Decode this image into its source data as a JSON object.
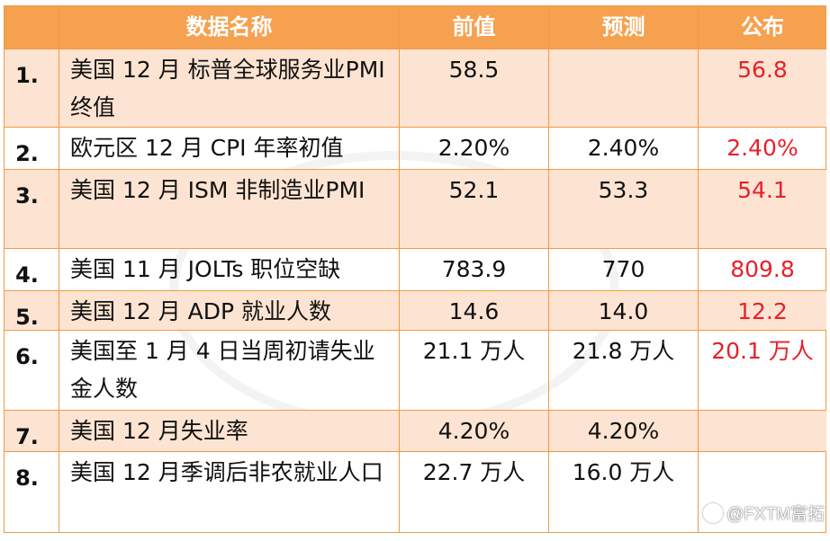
{
  "header": {
    "index": "",
    "name": "数据名称",
    "previous": "前值",
    "forecast": "预测",
    "actual": "公布"
  },
  "rows": [
    {
      "index": "1.",
      "name": "美国 12 月 标普全球服务业PMI 终值",
      "previous": "58.5",
      "forecast": "",
      "actual": "56.8"
    },
    {
      "index": "2.",
      "name": "欧元区 12 月 CPI 年率初值",
      "previous": "2.20%",
      "forecast": "2.40%",
      "actual": "2.40%"
    },
    {
      "index": "3.",
      "name": "美国 12 月 ISM 非制造业PMI",
      "previous": "52.1",
      "forecast": "53.3",
      "actual": "54.1"
    },
    {
      "index": "4.",
      "name": "美国 11 月 JOLTs 职位空缺",
      "previous": "783.9",
      "forecast": "770",
      "actual": "809.8"
    },
    {
      "index": "5.",
      "name": "美国 12 月 ADP 就业人数",
      "previous": "14.6",
      "forecast": "14.0",
      "actual": "12.2"
    },
    {
      "index": "6.",
      "name": "美国至 1 月 4 日当周初请失业金人数",
      "previous": "21.1 万人",
      "forecast": "21.8 万人",
      "actual": "20.1 万人"
    },
    {
      "index": "7.",
      "name": "美国 12 月失业率",
      "previous": "4.20%",
      "forecast": "4.20%",
      "actual": ""
    },
    {
      "index": "8.",
      "name": "美国 12 月季调后非农就业人口",
      "previous": "22.7 万人",
      "forecast": "16.0 万人",
      "actual": ""
    }
  ],
  "brand": {
    "icon": "wechat-logo-icon",
    "label": "@FXTM富拓"
  },
  "colors": {
    "header_bg": "#f5a150",
    "alt_row_bg": "#fde4d2",
    "border": "#f19a44",
    "actual_text": "#e8202a"
  }
}
